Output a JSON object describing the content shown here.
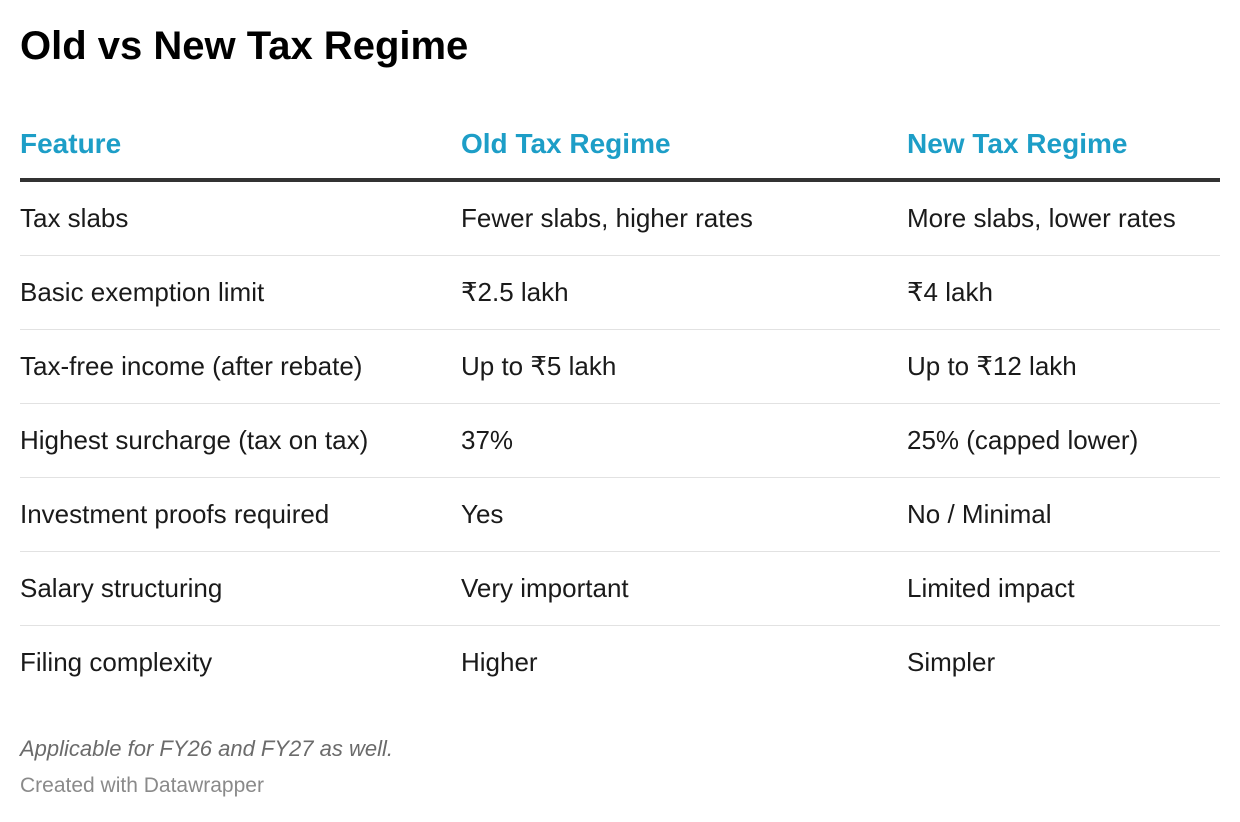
{
  "chart_data": {
    "type": "table",
    "title": "Old vs New Tax Regime",
    "columns": [
      "Feature",
      "Old Tax Regime",
      "New Tax Regime"
    ],
    "rows": [
      [
        "Tax slabs",
        "Fewer slabs, higher rates",
        "More slabs, lower rates"
      ],
      [
        "Basic exemption limit",
        "₹2.5 lakh",
        "₹4 lakh"
      ],
      [
        "Tax-free income (after rebate)",
        "Up to ₹5 lakh",
        "Up to ₹12 lakh"
      ],
      [
        "Highest surcharge (tax on tax)",
        "37%",
        "25% (capped lower)"
      ],
      [
        "Investment proofs required",
        "Yes",
        "No / Minimal"
      ],
      [
        "Salary structuring",
        "Very important",
        "Limited impact"
      ],
      [
        "Filing complexity",
        "Higher",
        "Simpler"
      ]
    ],
    "notes": "Applicable for FY26 and FY27 as well.",
    "credit": "Created with Datawrapper"
  },
  "colors": {
    "header_text": "#1d9ec7",
    "header_rule": "#333333",
    "row_divider": "#e2e2e2",
    "title": "#000000",
    "note": "#6b6b6b",
    "credit": "#8a8a8a"
  }
}
